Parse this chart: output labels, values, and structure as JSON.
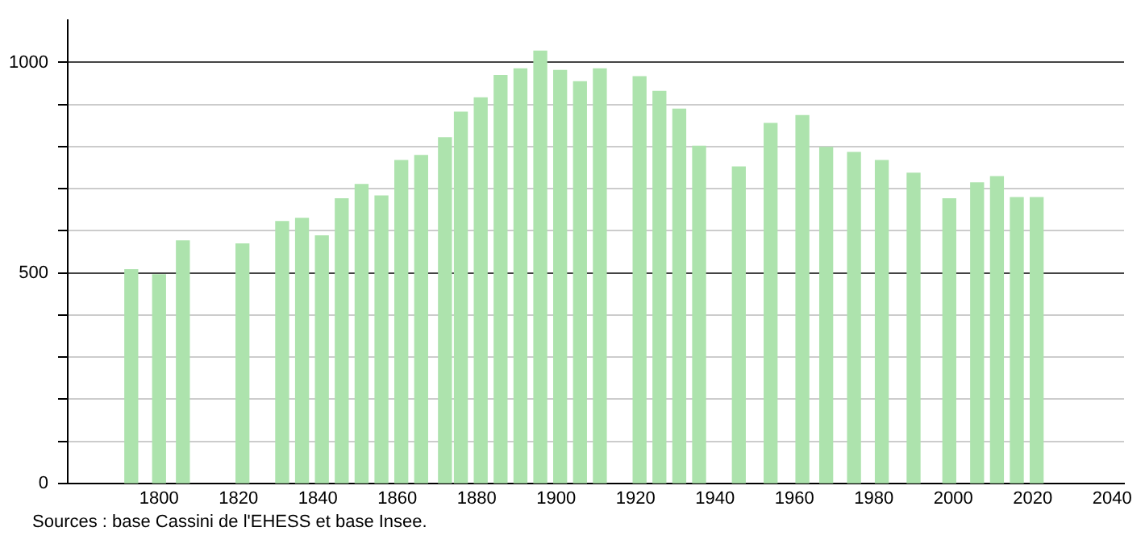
{
  "chart_data": {
    "type": "bar",
    "x": [
      1793,
      1800,
      1806,
      1821,
      1831,
      1836,
      1841,
      1846,
      1851,
      1856,
      1861,
      1866,
      1872,
      1876,
      1881,
      1886,
      1891,
      1896,
      1901,
      1906,
      1911,
      1921,
      1926,
      1931,
      1936,
      1946,
      1954,
      1962,
      1968,
      1975,
      1982,
      1990,
      1999,
      2006,
      2011,
      2016,
      2021
    ],
    "values": [
      508,
      496,
      576,
      569,
      622,
      630,
      588,
      676,
      710,
      683,
      767,
      779,
      821,
      882,
      916,
      969,
      985,
      1027,
      981,
      954,
      985,
      966,
      931,
      889,
      801,
      752,
      855,
      874,
      798,
      786,
      767,
      737,
      676,
      714,
      729,
      679,
      679
    ],
    "color": "#ade3ad",
    "xlim": [
      1777,
      2043
    ],
    "xticks": [
      1800,
      1820,
      1840,
      1860,
      1880,
      1900,
      1920,
      1940,
      1960,
      1980,
      2000,
      2020,
      2040
    ],
    "ylim": [
      0,
      1100
    ],
    "yticks": [
      0,
      {
        "value": 100,
        "label": null
      },
      {
        "value": 200,
        "label": null
      },
      {
        "value": 300,
        "label": null
      },
      {
        "value": 400,
        "label": null
      },
      500,
      {
        "value": 600,
        "label": null
      },
      {
        "value": 700,
        "label": null
      },
      {
        "value": 800,
        "label": null
      },
      {
        "value": 900,
        "label": null
      },
      1000
    ],
    "grid": "y",
    "annotations": [
      "Sources : base Cassini de l'EHESS et base Insee."
    ]
  }
}
